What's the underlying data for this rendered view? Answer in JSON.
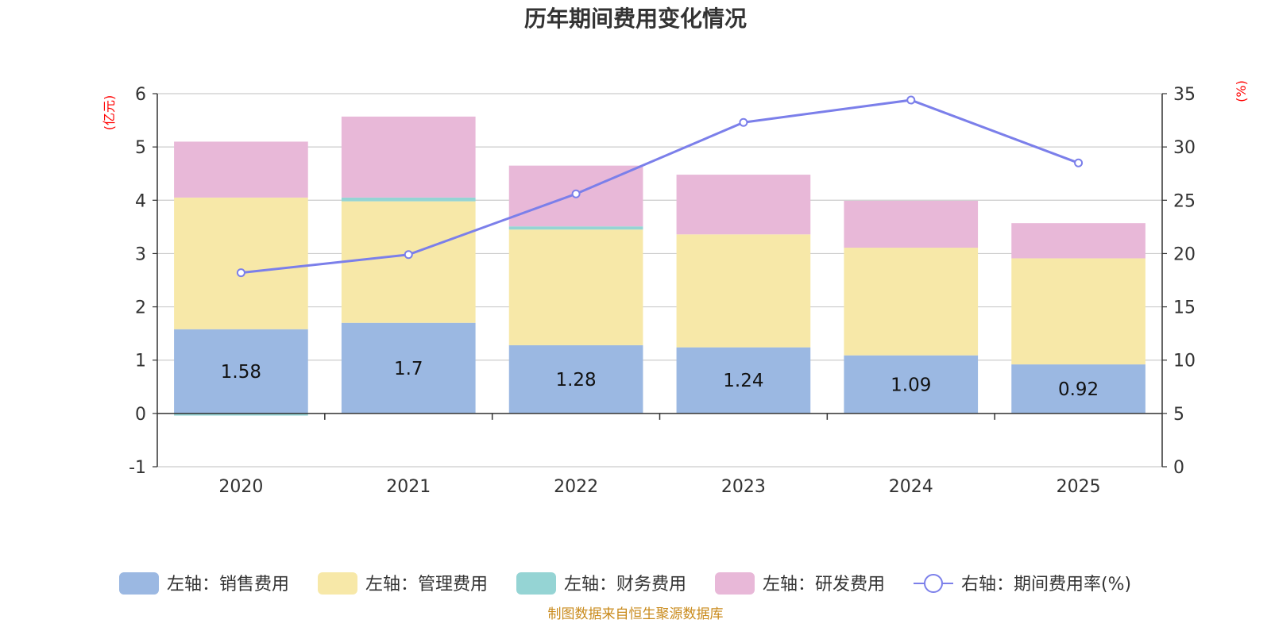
{
  "chart_data": {
    "type": "bar",
    "title": "历年期间费用变化情况",
    "categories": [
      "2020",
      "2021",
      "2022",
      "2023",
      "2024",
      "2025"
    ],
    "series": [
      {
        "name": "左轴：销售费用",
        "axis": "left",
        "values": [
          1.58,
          1.7,
          1.28,
          1.24,
          1.09,
          0.92
        ],
        "color": "#9bb8e2",
        "show_labels": true
      },
      {
        "name": "左轴：管理费用",
        "axis": "left",
        "values": [
          2.47,
          2.28,
          2.17,
          2.12,
          2.02,
          1.99
        ],
        "color": "#f7e8a8"
      },
      {
        "name": "左轴：财务费用",
        "axis": "left",
        "values": [
          -0.04,
          0.07,
          0.06,
          0.0,
          0.0,
          0.0
        ],
        "color": "#95d4d4"
      },
      {
        "name": "左轴：研发费用",
        "axis": "left",
        "values": [
          1.05,
          1.52,
          1.14,
          1.12,
          0.88,
          0.66
        ],
        "color": "#e8b8d8"
      }
    ],
    "line_series": {
      "name": "右轴：期间费用率(%)",
      "axis": "right",
      "values": [
        18.2,
        19.9,
        25.6,
        32.3,
        34.4,
        28.5
      ],
      "color": "#7b7fea"
    },
    "left_axis": {
      "unit": "(亿元)",
      "ylim": [
        -1,
        6
      ],
      "ticks": [
        -1,
        0,
        1,
        2,
        3,
        4,
        5,
        6
      ]
    },
    "right_axis": {
      "unit": "(%)",
      "ylim": [
        0,
        35
      ],
      "ticks": [
        0,
        5,
        10,
        15,
        20,
        25,
        30,
        35
      ]
    },
    "legend_position": "bottom",
    "grid": true
  },
  "source": "制图数据来自恒生聚源数据库"
}
